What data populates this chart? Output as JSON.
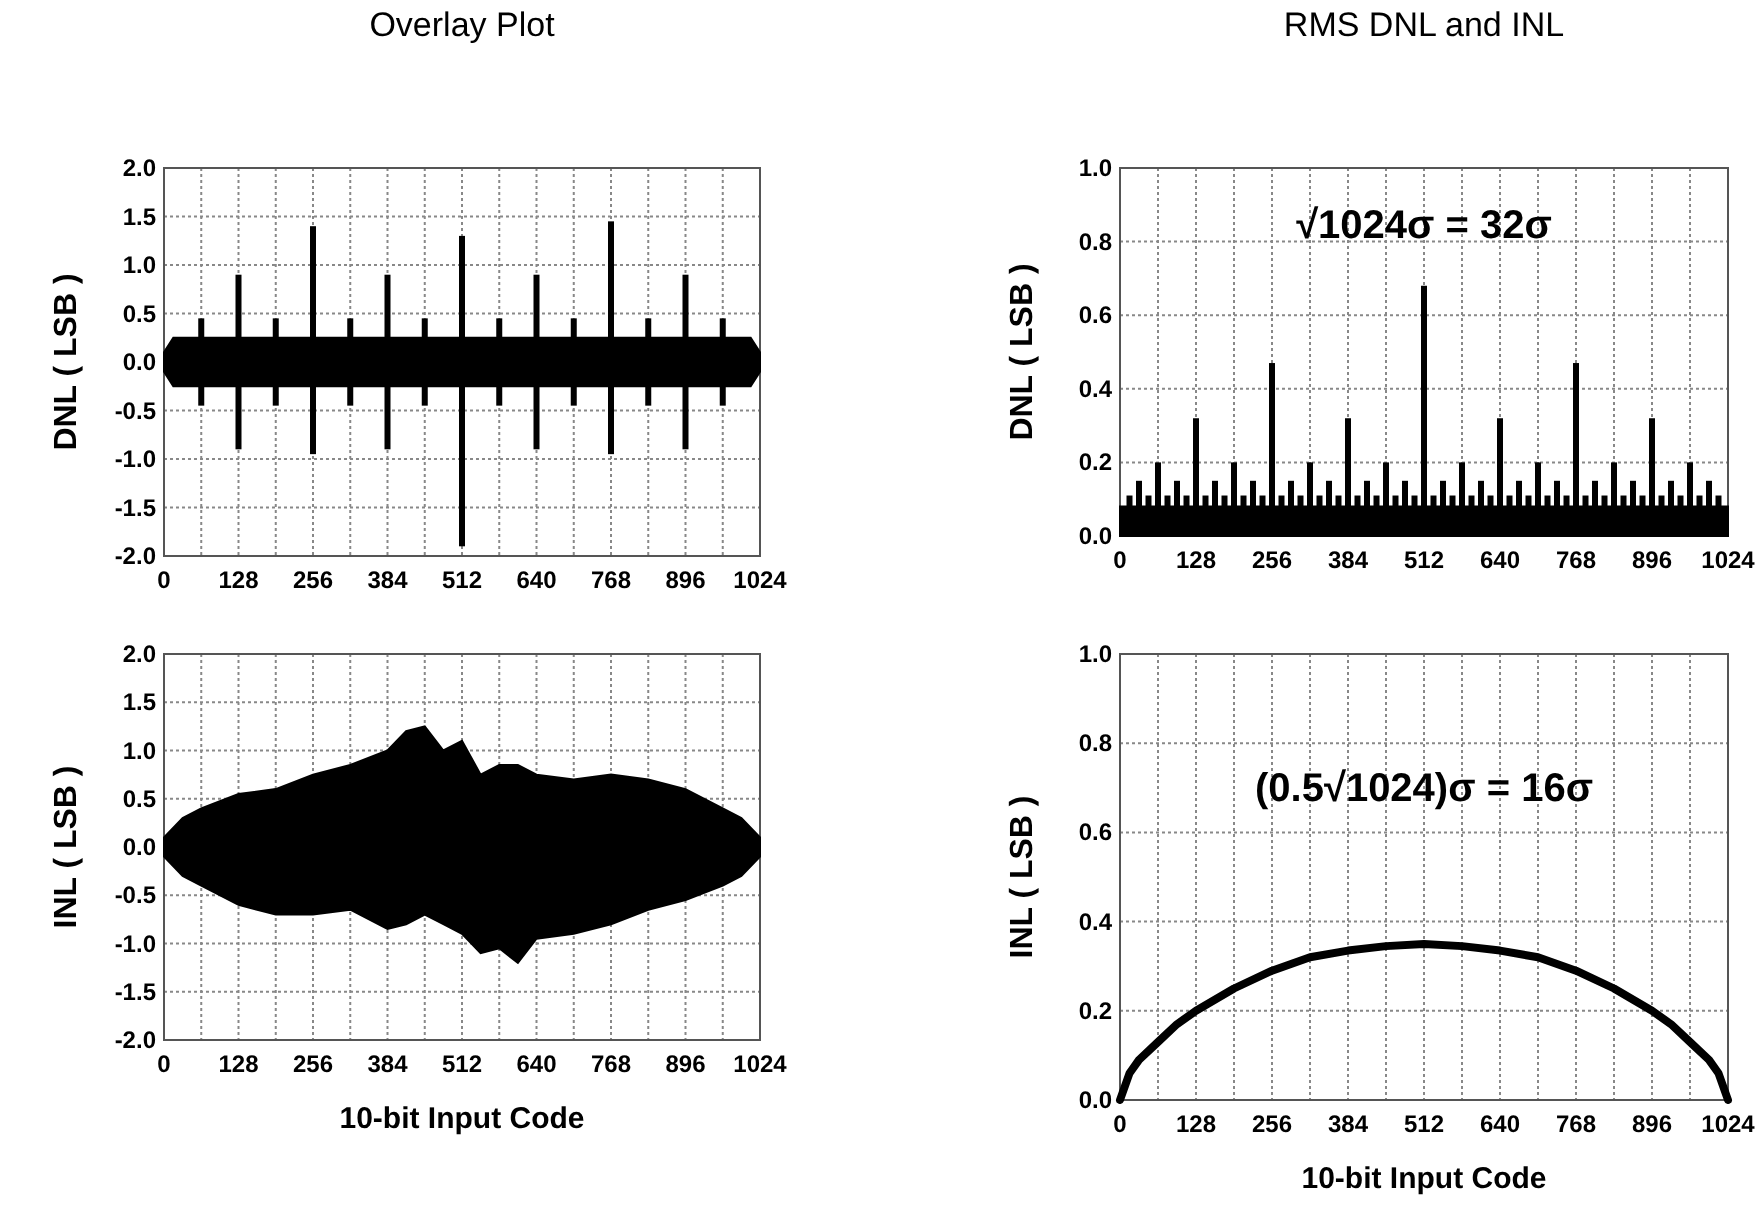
{
  "chart_data": [
    {
      "type": "bar",
      "title": "Overlay Plot",
      "ylabel": "DNL ( LSB )",
      "grid": true,
      "xlim": [
        0,
        1024
      ],
      "ylim": [
        -2,
        2
      ],
      "xticks": [
        0,
        {
          "value": 64,
          "label": null
        },
        128,
        {
          "value": 192,
          "label": null
        },
        256,
        {
          "value": 320,
          "label": null
        },
        384,
        {
          "value": 448,
          "label": null
        },
        512,
        {
          "value": 576,
          "label": null
        },
        640,
        {
          "value": 704,
          "label": null
        },
        768,
        {
          "value": 832,
          "label": null
        },
        896,
        {
          "value": 960,
          "label": null
        },
        1024
      ],
      "yticks": [
        {
          "value": -2,
          "label": "-2.0"
        },
        -1.5,
        {
          "value": -1,
          "label": "-1.0"
        },
        -0.5,
        {
          "value": 0,
          "label": "0.0"
        },
        0.5,
        {
          "value": 1,
          "label": "1.0"
        },
        1.5,
        {
          "value": 2,
          "label": "2.0"
        }
      ],
      "series": [
        {
          "type": "area",
          "color": "#000000",
          "x": [
            0,
            16,
            1008,
            1024
          ],
          "values": [
            0.1,
            0.25,
            0.25,
            0.1
          ]
        },
        {
          "type": "area",
          "color": "#000000",
          "x": [
            0,
            16,
            1008,
            1024
          ],
          "values": [
            -0.1,
            -0.25,
            -0.25,
            -0.1
          ]
        },
        {
          "color": "#000000",
          "x": [
            64,
            128,
            192,
            256,
            320,
            384,
            448,
            512,
            576,
            640,
            704,
            768,
            832,
            896,
            960
          ],
          "base": [
            -0.45,
            -0.9,
            -0.45,
            -0.95,
            -0.45,
            -0.9,
            -0.45,
            -1.9,
            -0.45,
            -0.9,
            -0.45,
            -0.95,
            -0.45,
            -0.9,
            -0.45
          ],
          "values": [
            0.9,
            1.8,
            0.9,
            2.35,
            0.9,
            1.8,
            0.9,
            3.2,
            0.9,
            1.8,
            0.9,
            2.4,
            0.9,
            1.8,
            0.9
          ]
        }
      ]
    },
    {
      "type": "bar",
      "title": "RMS DNL and INL",
      "ylabel": "DNL ( LSB )",
      "grid": true,
      "xlim": [
        0,
        1024
      ],
      "ylim": [
        0,
        1
      ],
      "annotations": [
        "√1024σ = 32σ"
      ],
      "xticks": [
        0,
        {
          "value": 64,
          "label": null
        },
        128,
        {
          "value": 192,
          "label": null
        },
        256,
        {
          "value": 320,
          "label": null
        },
        384,
        {
          "value": 448,
          "label": null
        },
        512,
        {
          "value": 576,
          "label": null
        },
        640,
        {
          "value": 704,
          "label": null
        },
        768,
        {
          "value": 832,
          "label": null
        },
        896,
        {
          "value": 960,
          "label": null
        },
        1024
      ],
      "yticks": [
        {
          "value": 0,
          "label": "0.0"
        },
        0.2,
        0.4,
        0.6,
        0.8,
        {
          "value": 1,
          "label": "1.0"
        }
      ],
      "series": [
        {
          "type": "area",
          "color": "#000000",
          "x": [
            0,
            1024
          ],
          "values": [
            0.08,
            0.08
          ]
        },
        {
          "color": "#000000",
          "x": [
            16,
            32,
            48,
            64,
            80,
            96,
            112,
            128,
            144,
            160,
            176,
            192,
            208,
            224,
            240,
            256,
            272,
            288,
            304,
            320,
            336,
            352,
            368,
            384,
            400,
            416,
            432,
            448,
            464,
            480,
            496,
            512,
            528,
            544,
            560,
            576,
            592,
            608,
            624,
            640,
            656,
            672,
            688,
            704,
            720,
            736,
            752,
            768,
            784,
            800,
            816,
            832,
            848,
            864,
            880,
            896,
            912,
            928,
            944,
            960,
            976,
            992,
            1008
          ],
          "values": [
            0.11,
            0.15,
            0.11,
            0.2,
            0.11,
            0.15,
            0.11,
            0.32,
            0.11,
            0.15,
            0.11,
            0.2,
            0.11,
            0.15,
            0.11,
            0.47,
            0.11,
            0.15,
            0.11,
            0.2,
            0.11,
            0.15,
            0.11,
            0.32,
            0.11,
            0.15,
            0.11,
            0.2,
            0.11,
            0.15,
            0.11,
            0.68,
            0.11,
            0.15,
            0.11,
            0.2,
            0.11,
            0.15,
            0.11,
            0.32,
            0.11,
            0.15,
            0.11,
            0.2,
            0.11,
            0.15,
            0.11,
            0.47,
            0.11,
            0.15,
            0.11,
            0.2,
            0.11,
            0.15,
            0.11,
            0.32,
            0.11,
            0.15,
            0.11,
            0.2,
            0.11,
            0.15,
            0.11
          ]
        }
      ]
    },
    {
      "type": "area",
      "xlabel": "10-bit Input Code",
      "ylabel": "INL ( LSB )",
      "grid": true,
      "xlim": [
        0,
        1024
      ],
      "ylim": [
        -2,
        2
      ],
      "xticks": [
        0,
        {
          "value": 64,
          "label": null
        },
        128,
        {
          "value": 192,
          "label": null
        },
        256,
        {
          "value": 320,
          "label": null
        },
        384,
        {
          "value": 448,
          "label": null
        },
        512,
        {
          "value": 576,
          "label": null
        },
        640,
        {
          "value": 704,
          "label": null
        },
        768,
        {
          "value": 832,
          "label": null
        },
        896,
        {
          "value": 960,
          "label": null
        },
        1024
      ],
      "yticks": [
        {
          "value": -2,
          "label": "-2.0"
        },
        -1.5,
        {
          "value": -1,
          "label": "-1.0"
        },
        -0.5,
        {
          "value": 0,
          "label": "0.0"
        },
        0.5,
        {
          "value": 1,
          "label": "1.0"
        },
        1.5,
        {
          "value": 2,
          "label": "2.0"
        }
      ],
      "series": [
        {
          "color": "#000000",
          "x": [
            0,
            32,
            64,
            128,
            192,
            256,
            320,
            384,
            416,
            448,
            480,
            512,
            544,
            576,
            608,
            640,
            704,
            768,
            832,
            896,
            960,
            992,
            1024
          ],
          "values": [
            0.1,
            0.3,
            0.4,
            0.55,
            0.6,
            0.75,
            0.85,
            1.0,
            1.2,
            1.25,
            1.0,
            1.1,
            0.75,
            0.85,
            0.85,
            0.75,
            0.7,
            0.75,
            0.7,
            0.6,
            0.4,
            0.3,
            0.1
          ]
        },
        {
          "color": "#000000",
          "x": [
            0,
            32,
            64,
            128,
            192,
            256,
            320,
            384,
            416,
            448,
            480,
            512,
            544,
            576,
            608,
            640,
            704,
            768,
            832,
            896,
            960,
            992,
            1024
          ],
          "values": [
            -0.1,
            -0.3,
            -0.4,
            -0.6,
            -0.7,
            -0.7,
            -0.65,
            -0.85,
            -0.8,
            -0.7,
            -0.8,
            -0.9,
            -1.1,
            -1.05,
            -1.2,
            -0.95,
            -0.9,
            -0.8,
            -0.65,
            -0.55,
            -0.4,
            -0.3,
            -0.1
          ]
        }
      ]
    },
    {
      "type": "line",
      "xlabel": "10-bit Input Code",
      "ylabel": "INL ( LSB )",
      "grid": true,
      "xlim": [
        0,
        1024
      ],
      "ylim": [
        0,
        1
      ],
      "annotations": [
        "(0.5√1024)σ = 16σ"
      ],
      "xticks": [
        0,
        {
          "value": 64,
          "label": null
        },
        128,
        {
          "value": 192,
          "label": null
        },
        256,
        {
          "value": 320,
          "label": null
        },
        384,
        {
          "value": 448,
          "label": null
        },
        512,
        {
          "value": 576,
          "label": null
        },
        640,
        {
          "value": 704,
          "label": null
        },
        768,
        {
          "value": 832,
          "label": null
        },
        896,
        {
          "value": 960,
          "label": null
        },
        1024
      ],
      "yticks": [
        {
          "value": 0,
          "label": "0.0"
        },
        0.2,
        0.4,
        0.6,
        0.8,
        {
          "value": 1,
          "label": "1.0"
        }
      ],
      "series": [
        {
          "color": "#000000",
          "x": [
            0,
            16,
            32,
            64,
            96,
            128,
            192,
            256,
            320,
            384,
            448,
            512,
            576,
            640,
            704,
            768,
            832,
            896,
            928,
            960,
            992,
            1008,
            1024
          ],
          "values": [
            0,
            0.06,
            0.09,
            0.13,
            0.17,
            0.2,
            0.25,
            0.29,
            0.32,
            0.335,
            0.345,
            0.35,
            0.345,
            0.335,
            0.32,
            0.29,
            0.25,
            0.2,
            0.17,
            0.13,
            0.09,
            0.06,
            0
          ]
        }
      ]
    }
  ]
}
